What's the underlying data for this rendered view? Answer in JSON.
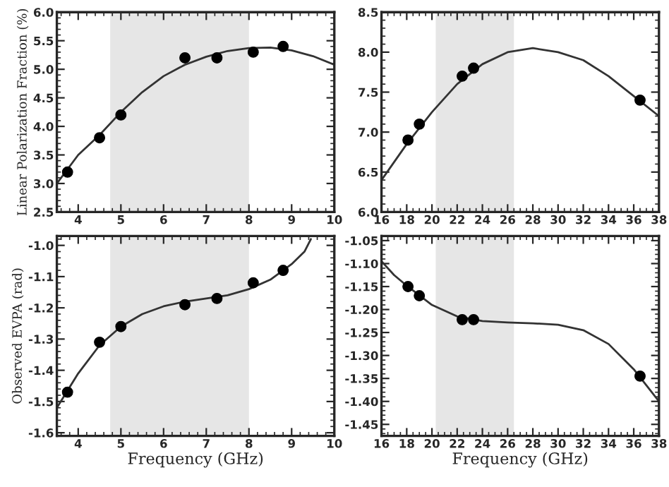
{
  "chart_data": [
    {
      "type": "scatter",
      "ylabel": "Linear Polarization Fraction (%)",
      "xlim": [
        3.5,
        10
      ],
      "xticks": [
        4,
        5,
        6,
        7,
        8,
        9,
        10
      ],
      "ylim": [
        2.5,
        6.0
      ],
      "yticks": [
        {
          "value": 2.5,
          "label": "2.5"
        },
        {
          "value": 3.0,
          "label": "3.0"
        },
        {
          "value": 3.5,
          "label": "3.5"
        },
        {
          "value": 4.0,
          "label": "4.0"
        },
        {
          "value": 4.5,
          "label": "4.5"
        },
        {
          "value": 5.0,
          "label": "5.0"
        },
        {
          "value": 5.5,
          "label": "5.5"
        },
        {
          "value": 6.0,
          "label": "6.0"
        }
      ],
      "bands": [
        {
          "axis": "x",
          "from": 4.75,
          "to": 8,
          "color": "#e6e6e6"
        }
      ],
      "series": [
        {
          "color": "#000000",
          "marker": "circle",
          "x": [
            3.75,
            4.5,
            5,
            6.5,
            7.25,
            8.1,
            8.8
          ],
          "values": [
            3.2,
            3.8,
            4.2,
            5.2,
            5.2,
            5.3,
            5.4
          ]
        },
        {
          "type": "line",
          "color": "#333333",
          "marker": "none",
          "line_style": "solid",
          "x": [
            3.5,
            4,
            4.5,
            5,
            5.5,
            6,
            6.5,
            7,
            7.5,
            8,
            8.5,
            9,
            9.5,
            10
          ],
          "values": [
            3.0,
            3.5,
            3.85,
            4.25,
            4.6,
            4.88,
            5.08,
            5.22,
            5.32,
            5.37,
            5.38,
            5.33,
            5.23,
            5.08
          ]
        }
      ]
    },
    {
      "type": "scatter",
      "xlim": [
        16,
        38
      ],
      "xticks": [
        16,
        18,
        20,
        22,
        24,
        26,
        28,
        30,
        32,
        34,
        36,
        38
      ],
      "ylim": [
        6.0,
        8.5
      ],
      "yticks": [
        {
          "value": 6.0,
          "label": "6.0"
        },
        {
          "value": 6.5,
          "label": "6.5"
        },
        {
          "value": 7.0,
          "label": "7.0"
        },
        {
          "value": 7.5,
          "label": "7.5"
        },
        {
          "value": 8.0,
          "label": "8.0"
        },
        {
          "value": 8.5,
          "label": "8.5"
        }
      ],
      "bands": [
        {
          "axis": "x",
          "from": 20.3,
          "to": 26.5,
          "color": "#e6e6e6"
        }
      ],
      "series": [
        {
          "color": "#000000",
          "marker": "circle",
          "x": [
            18.1,
            19,
            22.4,
            23.3,
            36.5
          ],
          "values": [
            6.9,
            7.1,
            7.7,
            7.8,
            7.4
          ]
        },
        {
          "type": "line",
          "color": "#333333",
          "marker": "none",
          "line_style": "solid",
          "x": [
            16,
            18,
            20,
            22,
            24,
            26,
            28,
            30,
            32,
            34,
            36,
            38
          ],
          "values": [
            6.4,
            6.85,
            7.25,
            7.6,
            7.85,
            8.0,
            8.05,
            8.0,
            7.9,
            7.7,
            7.45,
            7.2
          ]
        }
      ]
    },
    {
      "type": "scatter",
      "xlabel": "Frequency (GHz)",
      "ylabel": "Observed EVPA (rad)",
      "xlim": [
        3.5,
        10
      ],
      "xticks": [
        4,
        5,
        6,
        7,
        8,
        9,
        10
      ],
      "ylim": [
        -1.61,
        -0.97
      ],
      "yticks": [
        {
          "value": -1.6,
          "label": "-1.6"
        },
        {
          "value": -1.5,
          "label": "-1.5"
        },
        {
          "value": -1.4,
          "label": "-1.4"
        },
        {
          "value": -1.3,
          "label": "-1.3"
        },
        {
          "value": -1.2,
          "label": "-1.2"
        },
        {
          "value": -1.1,
          "label": "-1.1"
        },
        {
          "value": -1.0,
          "label": "-1.0"
        }
      ],
      "bands": [
        {
          "axis": "x",
          "from": 4.75,
          "to": 8,
          "color": "#e6e6e6"
        }
      ],
      "series": [
        {
          "color": "#000000",
          "marker": "circle",
          "x": [
            3.75,
            4.5,
            5,
            6.5,
            7.25,
            8.1,
            8.8
          ],
          "values": [
            -1.47,
            -1.31,
            -1.26,
            -1.19,
            -1.17,
            -1.12,
            -1.08
          ]
        },
        {
          "type": "line",
          "color": "#333333",
          "marker": "none",
          "line_style": "solid",
          "x": [
            3.5,
            4,
            4.5,
            5,
            5.5,
            6,
            6.5,
            7,
            7.5,
            8,
            8.5,
            9,
            9.3,
            9.45
          ],
          "values": [
            -1.52,
            -1.41,
            -1.32,
            -1.26,
            -1.22,
            -1.195,
            -1.18,
            -1.17,
            -1.16,
            -1.14,
            -1.11,
            -1.06,
            -1.02,
            -0.98
          ]
        }
      ]
    },
    {
      "type": "scatter",
      "xlabel": "Frequency (GHz)",
      "xlim": [
        16,
        38
      ],
      "xticks": [
        16,
        18,
        20,
        22,
        24,
        26,
        28,
        30,
        32,
        34,
        36,
        38
      ],
      "ylim": [
        -1.475,
        -1.04
      ],
      "yticks": [
        {
          "value": -1.45,
          "label": "-1.45"
        },
        {
          "value": -1.4,
          "label": "-1.40"
        },
        {
          "value": -1.35,
          "label": "-1.35"
        },
        {
          "value": -1.3,
          "label": "-1.30"
        },
        {
          "value": -1.25,
          "label": "-1.25"
        },
        {
          "value": -1.2,
          "label": "-1.20"
        },
        {
          "value": -1.15,
          "label": "-1.15"
        },
        {
          "value": -1.1,
          "label": "-1.10"
        },
        {
          "value": -1.05,
          "label": "-1.05"
        }
      ],
      "bands": [
        {
          "axis": "x",
          "from": 20.3,
          "to": 26.5,
          "color": "#e6e6e6"
        }
      ],
      "series": [
        {
          "color": "#000000",
          "marker": "circle",
          "x": [
            18.1,
            19,
            22.4,
            23.3,
            36.5
          ],
          "values": [
            -1.15,
            -1.17,
            -1.222,
            -1.222,
            -1.345
          ]
        },
        {
          "type": "line",
          "color": "#333333",
          "marker": "none",
          "line_style": "solid",
          "x": [
            16,
            17,
            18,
            20,
            22,
            24,
            26,
            28,
            30,
            32,
            34,
            36,
            37,
            38
          ],
          "values": [
            -1.095,
            -1.125,
            -1.148,
            -1.19,
            -1.215,
            -1.225,
            -1.228,
            -1.23,
            -1.233,
            -1.245,
            -1.275,
            -1.33,
            -1.365,
            -1.4
          ]
        }
      ]
    }
  ]
}
